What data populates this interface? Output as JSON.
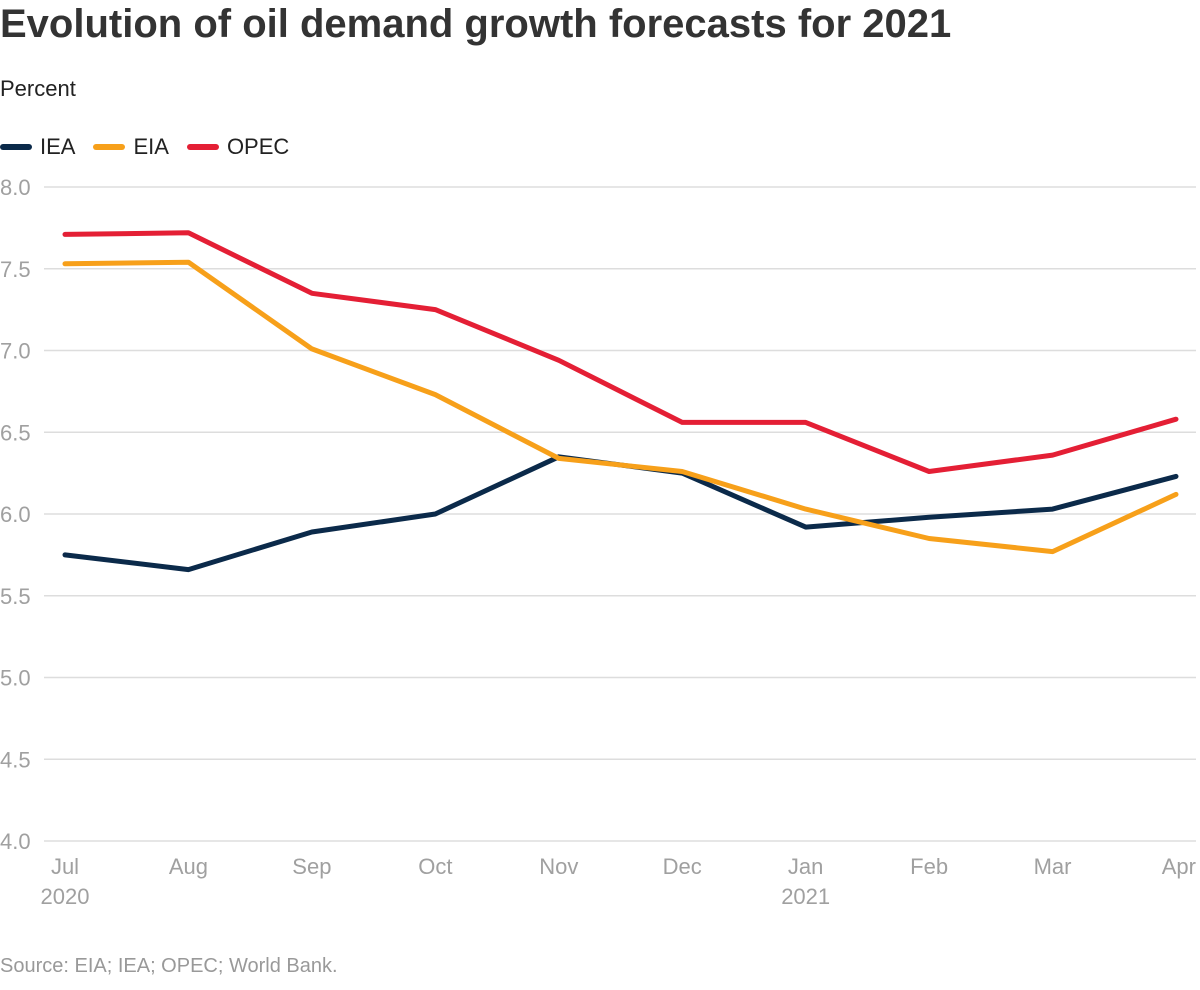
{
  "title": "Evolution of oil demand growth forecasts for 2021",
  "subtitle": "Percent",
  "source": "Source: EIA; IEA; OPEC; World Bank.",
  "colors": {
    "IEA": "#0b2a4a",
    "EIA": "#f7a01a",
    "OPEC": "#e41f35",
    "grid": "#dddddd",
    "tick": "#a0a0a0"
  },
  "legend": [
    {
      "name": "IEA",
      "color": "#0b2a4a"
    },
    {
      "name": "EIA",
      "color": "#f7a01a"
    },
    {
      "name": "OPEC",
      "color": "#e41f35"
    }
  ],
  "chart_data": {
    "type": "line",
    "title": "Evolution of oil demand growth forecasts for 2021",
    "ylabel": "Percent",
    "xlabel": "",
    "categories": [
      "Jul",
      "Aug",
      "Sep",
      "Oct",
      "Nov",
      "Dec",
      "Jan",
      "Feb",
      "Mar",
      "Apr"
    ],
    "category_sublabels": [
      "2020",
      "",
      "",
      "",
      "",
      "",
      "2021",
      "",
      "",
      ""
    ],
    "ylim": [
      4.0,
      8.0
    ],
    "yticks": [
      "8.0",
      "7.5",
      "7.0",
      "6.5",
      "6.0",
      "5.5",
      "5.0",
      "4.5",
      "4.0"
    ],
    "grid": true,
    "legend_position": "top-left",
    "series": [
      {
        "name": "IEA",
        "color": "#0b2a4a",
        "values": [
          5.75,
          5.66,
          5.89,
          6.0,
          6.35,
          6.25,
          5.92,
          5.98,
          6.03,
          6.23
        ]
      },
      {
        "name": "EIA",
        "color": "#f7a01a",
        "values": [
          7.53,
          7.54,
          7.01,
          6.73,
          6.34,
          6.26,
          6.03,
          5.85,
          5.77,
          6.12
        ]
      },
      {
        "name": "OPEC",
        "color": "#e41f35",
        "values": [
          7.71,
          7.72,
          7.35,
          7.25,
          6.94,
          6.56,
          6.56,
          6.26,
          6.36,
          6.58
        ]
      }
    ]
  }
}
